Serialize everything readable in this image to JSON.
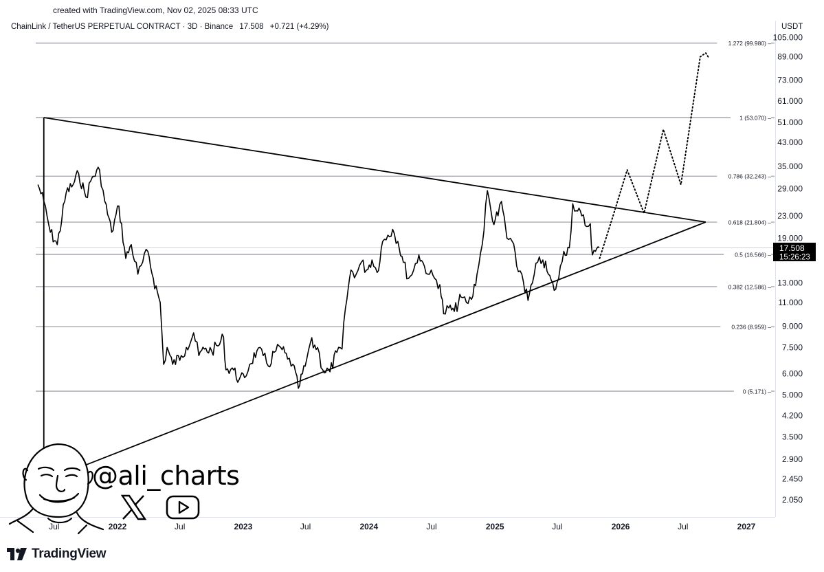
{
  "header": {
    "created": "created with TradingView.com, Nov 02, 2025 08:33 UTC",
    "symbol": "ChainLink / TetherUS PERPETUAL CONTRACT · 3D · Binance",
    "price": "17.508",
    "change": "+0.721 (+4.29%)",
    "currency": "USDT"
  },
  "price_tag": {
    "price": "17.508",
    "countdown": "15:26:23"
  },
  "watermark": {
    "handle": "@ali_charts",
    "x_icon": "x-logo-icon",
    "youtube_icon": "youtube-icon"
  },
  "footer": {
    "brand": "TradingView"
  },
  "colors": {
    "line": "#000000",
    "grid": "#787b86",
    "text": "#131722",
    "tag_bg": "#000000",
    "tag_text": "#ffffff"
  },
  "chart_data": {
    "type": "line",
    "scale": "log",
    "ylim": [
      1.9,
      110
    ],
    "xlim": [
      "2021-05-15",
      "2027-02-15"
    ],
    "y_ticks": [
      "105.000",
      "89.000",
      "73.000",
      "61.000",
      "51.000",
      "43.000",
      "35.000",
      "29.000",
      "23.000",
      "19.000",
      "13.000",
      "11.000",
      "9.000",
      "7.500",
      "6.000",
      "5.000",
      "4.200",
      "3.500",
      "2.900",
      "2.450",
      "2.050"
    ],
    "x_ticks": [
      {
        "label": "Jul",
        "date": "2021-07-01"
      },
      {
        "label": "2022",
        "date": "2022-01-01"
      },
      {
        "label": "Jul",
        "date": "2022-07-01"
      },
      {
        "label": "2023",
        "date": "2023-01-01"
      },
      {
        "label": "Jul",
        "date": "2023-07-01"
      },
      {
        "label": "2024",
        "date": "2024-01-01"
      },
      {
        "label": "Jul",
        "date": "2024-07-01"
      },
      {
        "label": "2025",
        "date": "2025-01-01"
      },
      {
        "label": "Jul",
        "date": "2025-07-01"
      },
      {
        "label": "2026",
        "date": "2026-01-01"
      },
      {
        "label": "Jul",
        "date": "2026-07-01"
      },
      {
        "label": "2027",
        "date": "2027-01-01"
      }
    ],
    "fib_levels": [
      {
        "label": "1.272 (99.980)",
        "value": 99.98
      },
      {
        "label": "1 (53.070)",
        "value": 53.07
      },
      {
        "label": "0.786 (32.243)",
        "value": 32.243
      },
      {
        "label": "0.618 (21.804)",
        "value": 21.804
      },
      {
        "label": "0.5 (16.566)",
        "value": 16.566
      },
      {
        "label": "0.382 (12.586)",
        "value": 12.586
      },
      {
        "label": "0.236 (8.959)",
        "value": 8.959
      },
      {
        "label": "0 (5.171)",
        "value": 5.171
      }
    ],
    "series": [
      {
        "values": [
          [
            "2021-05-15",
            30
          ],
          [
            "2021-06-01",
            26
          ],
          [
            "2021-06-20",
            20
          ],
          [
            "2021-07-10",
            18
          ],
          [
            "2021-08-05",
            28
          ],
          [
            "2021-08-25",
            30
          ],
          [
            "2021-09-10",
            33
          ],
          [
            "2021-10-01",
            27
          ],
          [
            "2021-10-20",
            32
          ],
          [
            "2021-11-10",
            34
          ],
          [
            "2021-11-25",
            26
          ],
          [
            "2021-12-15",
            20
          ],
          [
            "2022-01-05",
            25
          ],
          [
            "2022-01-25",
            16
          ],
          [
            "2022-02-10",
            18
          ],
          [
            "2022-03-01",
            14
          ],
          [
            "2022-03-15",
            15.5
          ],
          [
            "2022-03-30",
            17
          ],
          [
            "2022-04-15",
            13.5
          ],
          [
            "2022-05-05",
            11
          ],
          [
            "2022-05-15",
            6.5
          ],
          [
            "2022-05-25",
            7.5
          ],
          [
            "2022-06-10",
            6.5
          ],
          [
            "2022-07-05",
            7.0
          ],
          [
            "2022-07-20",
            7.5
          ],
          [
            "2022-08-10",
            8.5
          ],
          [
            "2022-08-25",
            7.0
          ],
          [
            "2022-09-10",
            7.4
          ],
          [
            "2022-10-01",
            7.3
          ],
          [
            "2022-10-20",
            7.6
          ],
          [
            "2022-11-05",
            8.2
          ],
          [
            "2022-11-12",
            6.2
          ],
          [
            "2022-11-30",
            6.3
          ],
          [
            "2022-12-20",
            5.7
          ],
          [
            "2023-01-05",
            5.8
          ],
          [
            "2023-01-20",
            6.5
          ],
          [
            "2023-02-10",
            7.3
          ],
          [
            "2023-02-28",
            7.0
          ],
          [
            "2023-03-15",
            6.4
          ],
          [
            "2023-04-01",
            7.2
          ],
          [
            "2023-04-20",
            7.5
          ],
          [
            "2023-05-10",
            6.8
          ],
          [
            "2023-05-25",
            6.5
          ],
          [
            "2023-06-10",
            5.3
          ],
          [
            "2023-06-30",
            6.4
          ],
          [
            "2023-07-15",
            7.8
          ],
          [
            "2023-08-05",
            7.5
          ],
          [
            "2023-08-20",
            6.2
          ],
          [
            "2023-09-10",
            6.1
          ],
          [
            "2023-09-30",
            7.2
          ],
          [
            "2023-10-15",
            7.4
          ],
          [
            "2023-10-25",
            10.5
          ],
          [
            "2023-11-10",
            14.5
          ],
          [
            "2023-11-25",
            14.0
          ],
          [
            "2023-12-10",
            15.5
          ],
          [
            "2023-12-25",
            14.5
          ],
          [
            "2024-01-10",
            15.8
          ],
          [
            "2024-01-25",
            14.2
          ],
          [
            "2024-02-10",
            18.5
          ],
          [
            "2024-02-25",
            19.5
          ],
          [
            "2024-03-10",
            20.5
          ],
          [
            "2024-03-25",
            18.5
          ],
          [
            "2024-04-10",
            15.5
          ],
          [
            "2024-04-25",
            13.5
          ],
          [
            "2024-05-10",
            14.5
          ],
          [
            "2024-05-25",
            16.5
          ],
          [
            "2024-06-10",
            15.0
          ],
          [
            "2024-06-25",
            14.0
          ],
          [
            "2024-07-10",
            13.5
          ],
          [
            "2024-07-25",
            12.8
          ],
          [
            "2024-08-05",
            10.0
          ],
          [
            "2024-08-20",
            10.5
          ],
          [
            "2024-09-05",
            10.2
          ],
          [
            "2024-09-25",
            11.5
          ],
          [
            "2024-10-10",
            11.0
          ],
          [
            "2024-10-25",
            11.3
          ],
          [
            "2024-11-10",
            14.0
          ],
          [
            "2024-11-25",
            18.0
          ],
          [
            "2024-12-10",
            28.5
          ],
          [
            "2024-12-25",
            22.0
          ],
          [
            "2025-01-10",
            23.0
          ],
          [
            "2025-01-20",
            26.0
          ],
          [
            "2025-02-05",
            19.0
          ],
          [
            "2025-02-20",
            18.5
          ],
          [
            "2025-03-05",
            15.0
          ],
          [
            "2025-03-20",
            14.0
          ],
          [
            "2025-04-07",
            11.2
          ],
          [
            "2025-04-20",
            13.0
          ],
          [
            "2025-05-05",
            15.5
          ],
          [
            "2025-05-20",
            15.8
          ],
          [
            "2025-06-05",
            14.0
          ],
          [
            "2025-06-22",
            12.2
          ],
          [
            "2025-07-05",
            13.5
          ],
          [
            "2025-07-20",
            17.0
          ],
          [
            "2025-08-05",
            17.5
          ],
          [
            "2025-08-15",
            25.5
          ],
          [
            "2025-08-25",
            24.0
          ],
          [
            "2025-09-10",
            23.0
          ],
          [
            "2025-09-25",
            21.0
          ],
          [
            "2025-10-05",
            21.5
          ],
          [
            "2025-10-11",
            16.5
          ],
          [
            "2025-10-20",
            17.0
          ],
          [
            "2025-10-31",
            17.508
          ]
        ]
      }
    ],
    "projection": [
      [
        "2025-11-01",
        16.0
      ],
      [
        "2025-12-10",
        23.0
      ],
      [
        "2026-01-20",
        34.0
      ],
      [
        "2026-03-10",
        23.5
      ],
      [
        "2026-05-05",
        48.0
      ],
      [
        "2026-06-25",
        30.0
      ],
      [
        "2026-08-20",
        89.0
      ],
      [
        "2026-09-05",
        92.0
      ],
      [
        "2026-09-12",
        89.0
      ]
    ],
    "trendlines": [
      {
        "from": [
          "2021-06-01",
          53.07
        ],
        "to": [
          "2026-09-05",
          21.804
        ]
      },
      {
        "from": [
          "2021-06-01",
          2.4
        ],
        "to": [
          "2026-09-05",
          21.804
        ]
      },
      {
        "from": [
          "2021-06-01",
          53.07
        ],
        "to": [
          "2021-06-01",
          2.05
        ]
      }
    ]
  }
}
